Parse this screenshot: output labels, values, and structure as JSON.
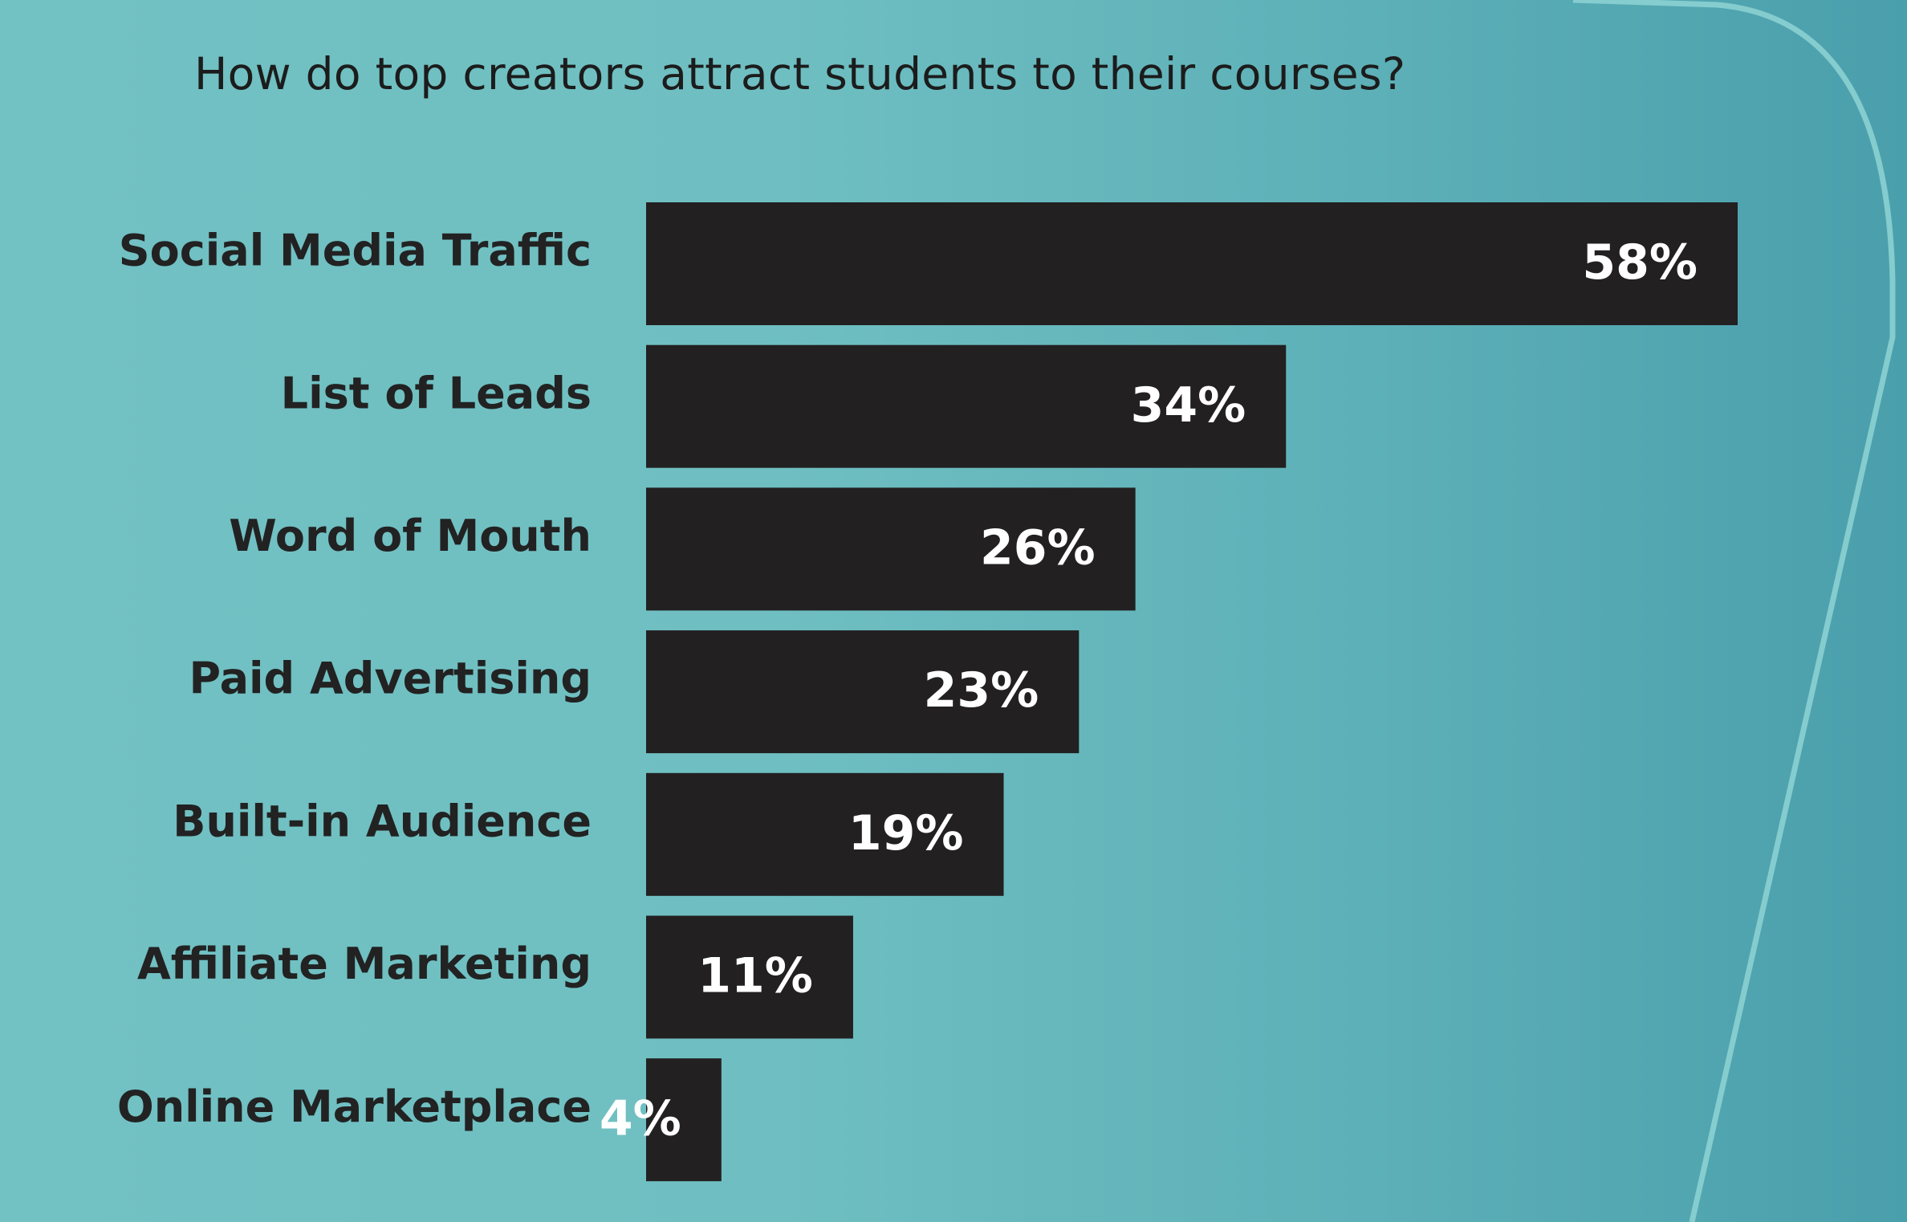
{
  "chart_data": {
    "type": "bar",
    "orientation": "horizontal",
    "title": "How do top creators attract students to their courses?",
    "categories": [
      "Social Media Traffic",
      "List of Leads",
      "Word of Mouth",
      "Paid Advertising",
      "Built-in Audience",
      "Affiliate Marketing",
      "Online Marketplace"
    ],
    "values": [
      58,
      34,
      26,
      23,
      19,
      11,
      4
    ],
    "value_labels": [
      "58%",
      "34%",
      "26%",
      "23%",
      "19%",
      "11%",
      "4%"
    ],
    "unit": "%",
    "xlim": [
      0,
      58
    ],
    "grid": false,
    "legend": "none"
  },
  "colors": {
    "bar": "#222021",
    "bar_text": "#ffffff",
    "category_text": "#222222",
    "title_text": "#1c1c1c",
    "background_left": "#72c1c3",
    "background_right": "#4a9fac",
    "accent_line": "#8ed3d4"
  }
}
